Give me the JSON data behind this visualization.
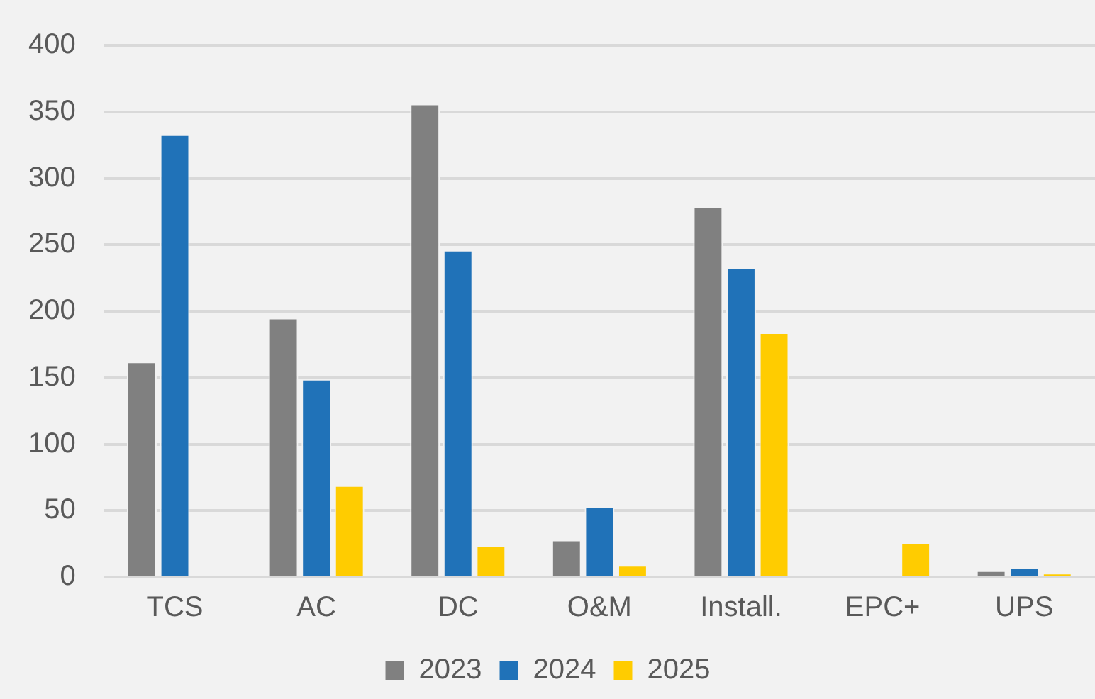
{
  "chart_data": {
    "type": "bar",
    "categories": [
      "TCS",
      "AC",
      "DC",
      "O&M",
      "Install.",
      "EPC+",
      "UPS"
    ],
    "series": [
      {
        "name": "2023",
        "color": "#808080",
        "values": [
          162,
          195,
          356,
          28,
          279,
          null,
          5
        ]
      },
      {
        "name": "2024",
        "color": "#2072b8",
        "values": [
          333,
          149,
          246,
          53,
          233,
          null,
          7
        ]
      },
      {
        "name": "2025",
        "color": "#ffcc00",
        "values": [
          null,
          69,
          24,
          9,
          184,
          26,
          3
        ]
      }
    ],
    "ylim": [
      0,
      400
    ],
    "yticks": [
      0,
      50,
      100,
      150,
      200,
      250,
      300,
      350,
      400
    ],
    "grid": "y",
    "legend": "bottom"
  }
}
